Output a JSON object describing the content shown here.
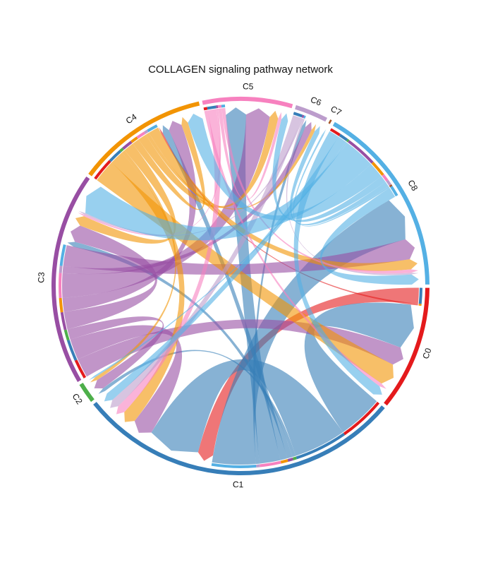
{
  "chart_data": {
    "type": "chord",
    "title": "COLLAGEN signaling pathway network",
    "groups": [
      {
        "name": "C0",
        "color": "#E41A1C"
      },
      {
        "name": "C1",
        "color": "#377EB8"
      },
      {
        "name": "C2",
        "color": "#4DAF4A"
      },
      {
        "name": "C3",
        "color": "#984EA3"
      },
      {
        "name": "C4",
        "color": "#F29403"
      },
      {
        "name": "C5",
        "color": "#F781BF"
      },
      {
        "name": "C6",
        "color": "#BC9DCC"
      },
      {
        "name": "C7",
        "color": "#A65628"
      },
      {
        "name": "C8",
        "color": "#54B0E4"
      }
    ],
    "matrix": [
      [
        0.0,
        0.09,
        0.0,
        0.0,
        0.01,
        0.0,
        0.0,
        0.0,
        0.0
      ],
      [
        0.26,
        0.3,
        0.02,
        0.03,
        0.04,
        0.12,
        0.02,
        0.0,
        0.25
      ],
      [
        0.0,
        0.0,
        0.0,
        0.0,
        0.0,
        0.0,
        0.0,
        0.0,
        0.0
      ],
      [
        0.11,
        0.12,
        0.06,
        0.1,
        0.08,
        0.14,
        0.04,
        0.0,
        0.12
      ],
      [
        0.13,
        0.08,
        0.02,
        0.06,
        0.04,
        0.05,
        0.02,
        0.0,
        0.06
      ],
      [
        0.02,
        0.05,
        0.0,
        0.01,
        0.0,
        0.02,
        0.0,
        0.0,
        0.02
      ],
      [
        0.0,
        0.05,
        0.0,
        0.01,
        0.0,
        0.0,
        0.0,
        0.0,
        0.01
      ],
      [
        0.0,
        0.0,
        0.0,
        0.0,
        0.0,
        0.0,
        0.0,
        0.0,
        0.0
      ],
      [
        0.06,
        0.05,
        0.01,
        0.18,
        0.09,
        0.04,
        0.03,
        0.01,
        0.06
      ]
    ]
  }
}
